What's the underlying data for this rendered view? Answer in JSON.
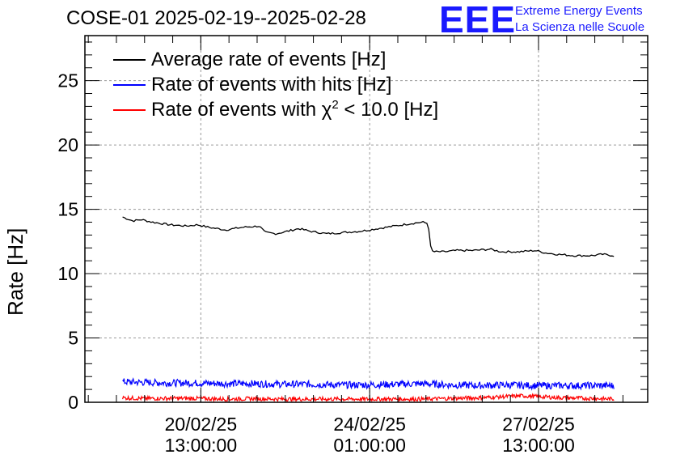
{
  "chart_data": {
    "type": "line",
    "title": "COSE-01 2025-02-19--2025-02-28",
    "ylabel": "Rate [Hz]",
    "xlabel": "",
    "ylim": [
      0,
      28.5
    ],
    "xlim": [
      0,
      10
    ],
    "yticks": [
      0,
      5,
      10,
      15,
      20,
      25
    ],
    "ytick_labels": [
      "0",
      "5",
      "10",
      "15",
      "20",
      "25"
    ],
    "xticks": [
      {
        "pos": 2.06,
        "date": "20/02/25",
        "time": "13:00:00"
      },
      {
        "pos": 5.06,
        "date": "24/02/25",
        "time": "01:00:00"
      },
      {
        "pos": 8.06,
        "date": "27/02/25",
        "time": "13:00:00"
      }
    ],
    "grid": true,
    "legend_position": "top-left",
    "series": [
      {
        "name": "Average rate of events [Hz]",
        "color": "#000000",
        "x": [
          0.67,
          0.85,
          1.0,
          1.2,
          1.5,
          1.8,
          2.0,
          2.2,
          2.5,
          2.8,
          3.1,
          3.2,
          3.4,
          3.6,
          3.8,
          4.0,
          4.3,
          4.6,
          4.9,
          5.2,
          5.5,
          5.8,
          6.0,
          6.1,
          6.15,
          6.2,
          6.4,
          6.6,
          6.9,
          7.2,
          7.4,
          7.7,
          8.0,
          8.2,
          8.4,
          8.7,
          9.0,
          9.2,
          9.4
        ],
        "values": [
          14.4,
          14.1,
          14.2,
          14.0,
          13.8,
          13.7,
          13.8,
          13.6,
          13.4,
          13.6,
          13.7,
          13.2,
          13.1,
          13.3,
          13.5,
          13.3,
          13.1,
          13.2,
          13.3,
          13.5,
          13.7,
          13.9,
          14.0,
          13.9,
          11.8,
          11.7,
          11.7,
          11.8,
          11.8,
          11.9,
          11.7,
          11.7,
          11.8,
          11.6,
          11.5,
          11.4,
          11.4,
          11.5,
          11.4
        ]
      },
      {
        "name": "Rate of events with hits [Hz]",
        "color": "#0000ff",
        "x": [
          0.67,
          1.0,
          1.5,
          2.0,
          2.5,
          3.0,
          3.5,
          4.0,
          4.5,
          5.0,
          5.5,
          6.0,
          6.5,
          7.0,
          7.5,
          8.0,
          8.5,
          9.0,
          9.4
        ],
        "values": [
          1.6,
          1.55,
          1.5,
          1.5,
          1.45,
          1.45,
          1.4,
          1.4,
          1.35,
          1.35,
          1.4,
          1.45,
          1.35,
          1.3,
          1.35,
          1.3,
          1.3,
          1.3,
          1.3
        ],
        "noise": 0.55
      },
      {
        "name": "Rate of events with χ² < 10.0 [Hz]",
        "name_main": "Rate of events with χ",
        "name_sup": "2",
        "name_rest": " < 10.0 [Hz]",
        "color": "#ff0000",
        "x": [
          0.67,
          1.0,
          1.5,
          2.0,
          2.5,
          3.0,
          3.5,
          4.0,
          4.5,
          5.0,
          5.5,
          6.0,
          6.5,
          7.0,
          7.5,
          7.8,
          8.0,
          8.5,
          9.0,
          9.4
        ],
        "values": [
          0.35,
          0.3,
          0.3,
          0.3,
          0.25,
          0.28,
          0.25,
          0.25,
          0.25,
          0.25,
          0.25,
          0.25,
          0.3,
          0.35,
          0.45,
          0.5,
          0.45,
          0.35,
          0.3,
          0.25
        ],
        "noise": 0.32
      }
    ]
  },
  "logo": {
    "mark": "EEE",
    "line1": "Extreme Energy Events",
    "line2": "La Scienza nelle Scuole"
  }
}
